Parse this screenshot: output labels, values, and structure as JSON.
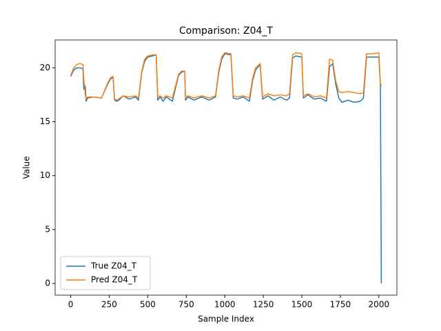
{
  "chart_data": {
    "type": "line",
    "title": "Comparison: Z04_T",
    "x_label": "Sample Index",
    "y_label": "Value",
    "x": [
      0,
      20,
      40,
      60,
      80,
      85,
      95,
      100,
      110,
      150,
      200,
      240,
      260,
      275,
      285,
      300,
      320,
      340,
      380,
      420,
      440,
      460,
      480,
      500,
      530,
      555,
      565,
      580,
      600,
      620,
      660,
      700,
      720,
      740,
      745,
      760,
      800,
      850,
      900,
      940,
      960,
      980,
      1000,
      1040,
      1055,
      1080,
      1120,
      1160,
      1180,
      1200,
      1230,
      1245,
      1280,
      1320,
      1360,
      1400,
      1420,
      1440,
      1460,
      1500,
      1510,
      1540,
      1580,
      1620,
      1660,
      1680,
      1700,
      1720,
      1740,
      1760,
      1800,
      1840,
      1880,
      1900,
      1920,
      1960,
      2000,
      2010,
      2016
    ],
    "series": [
      {
        "name": "True Z04_T",
        "color": "#1f77b4",
        "values": [
          19.2,
          19.8,
          20.0,
          20.0,
          19.9,
          18.0,
          18.3,
          16.9,
          17.2,
          17.3,
          17.2,
          18.5,
          19.0,
          19.1,
          17.0,
          16.9,
          17.1,
          17.4,
          17.1,
          17.3,
          17.0,
          19.5,
          20.6,
          21.0,
          21.1,
          21.2,
          17.0,
          17.3,
          16.9,
          17.3,
          16.9,
          19.3,
          19.6,
          19.7,
          17.0,
          17.3,
          17.0,
          17.3,
          17.0,
          17.3,
          19.5,
          20.8,
          21.3,
          21.2,
          17.2,
          17.1,
          17.3,
          16.9,
          18.8,
          19.8,
          20.3,
          17.1,
          17.4,
          17.0,
          17.3,
          17.0,
          17.2,
          20.9,
          21.1,
          21.0,
          17.2,
          17.5,
          17.1,
          17.2,
          16.9,
          20.1,
          20.4,
          18.5,
          17.2,
          16.8,
          17.0,
          16.8,
          16.9,
          17.2,
          21.0,
          21.0,
          21.0,
          18.4,
          0
        ]
      },
      {
        "name": "Pred Z04_T",
        "color": "#ff7f0e",
        "values": [
          19.3,
          20.0,
          20.3,
          20.4,
          20.3,
          19.0,
          17.5,
          17.1,
          17.3,
          17.3,
          17.2,
          18.6,
          19.1,
          19.2,
          17.1,
          17.0,
          17.2,
          17.4,
          17.3,
          17.4,
          17.2,
          19.6,
          20.8,
          21.1,
          21.2,
          21.2,
          17.3,
          17.4,
          17.2,
          17.4,
          17.2,
          19.4,
          19.7,
          19.7,
          17.2,
          17.4,
          17.2,
          17.4,
          17.2,
          17.4,
          19.7,
          21.0,
          21.4,
          21.3,
          17.4,
          17.3,
          17.4,
          17.2,
          19.0,
          20.0,
          20.4,
          17.3,
          17.6,
          17.4,
          17.5,
          17.4,
          17.6,
          21.2,
          21.4,
          21.3,
          17.4,
          17.6,
          17.3,
          17.4,
          17.2,
          20.8,
          20.7,
          18.8,
          17.8,
          17.7,
          17.8,
          17.7,
          17.6,
          17.7,
          21.3,
          21.3,
          21.4,
          18.6,
          18.3
        ]
      }
    ],
    "xlim": [
      -101,
      2117
    ],
    "ylim": [
      -1.08,
      22.58
    ],
    "xticks": [
      0,
      250,
      500,
      750,
      1000,
      1250,
      1500,
      1750,
      2000
    ],
    "yticks": [
      0,
      5,
      10,
      15,
      20
    ],
    "legend": "lower left",
    "grid": false
  }
}
